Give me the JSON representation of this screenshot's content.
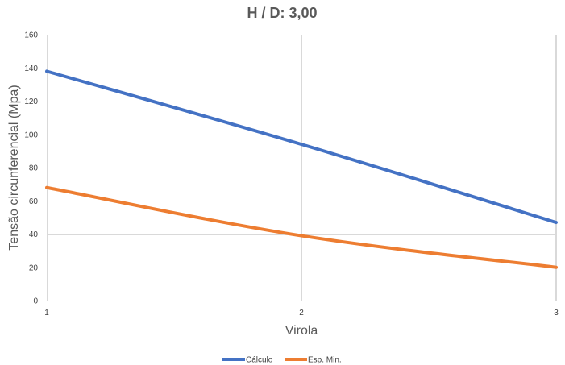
{
  "chart_data": {
    "type": "line",
    "title": "H / D: 3,00",
    "xlabel": "Virola",
    "ylabel": "Tensão circunferencial (Mpa)",
    "x": [
      1,
      2,
      3
    ],
    "x_tick_labels": [
      "1",
      "2",
      "3"
    ],
    "ylim": [
      0,
      160
    ],
    "y_ticks": [
      0,
      20,
      40,
      60,
      80,
      100,
      120,
      140,
      160
    ],
    "grid": true,
    "legend_position": "bottom",
    "series": [
      {
        "name": "Cálculo",
        "color": "#4472c4",
        "values": [
          138,
          94,
          47
        ]
      },
      {
        "name": "Esp. Min.",
        "color": "#ed7d31",
        "values": [
          68,
          39,
          20
        ]
      }
    ]
  }
}
